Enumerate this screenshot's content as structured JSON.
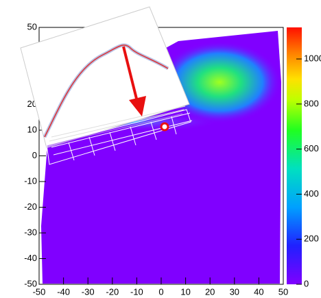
{
  "chart_data": {
    "type": "heatmap",
    "xlim": [
      -50,
      50
    ],
    "xticks": [
      -50,
      -40,
      -30,
      -20,
      -10,
      0,
      10,
      20,
      30,
      40,
      50
    ],
    "ylim": [
      -50,
      50
    ],
    "yticks": [
      -50,
      -40,
      -30,
      -20,
      -10,
      0,
      10,
      20,
      50
    ],
    "zlim": [
      0,
      1140
    ],
    "zticks": [
      0,
      200,
      400,
      600,
      800,
      1000
    ]
  }
}
